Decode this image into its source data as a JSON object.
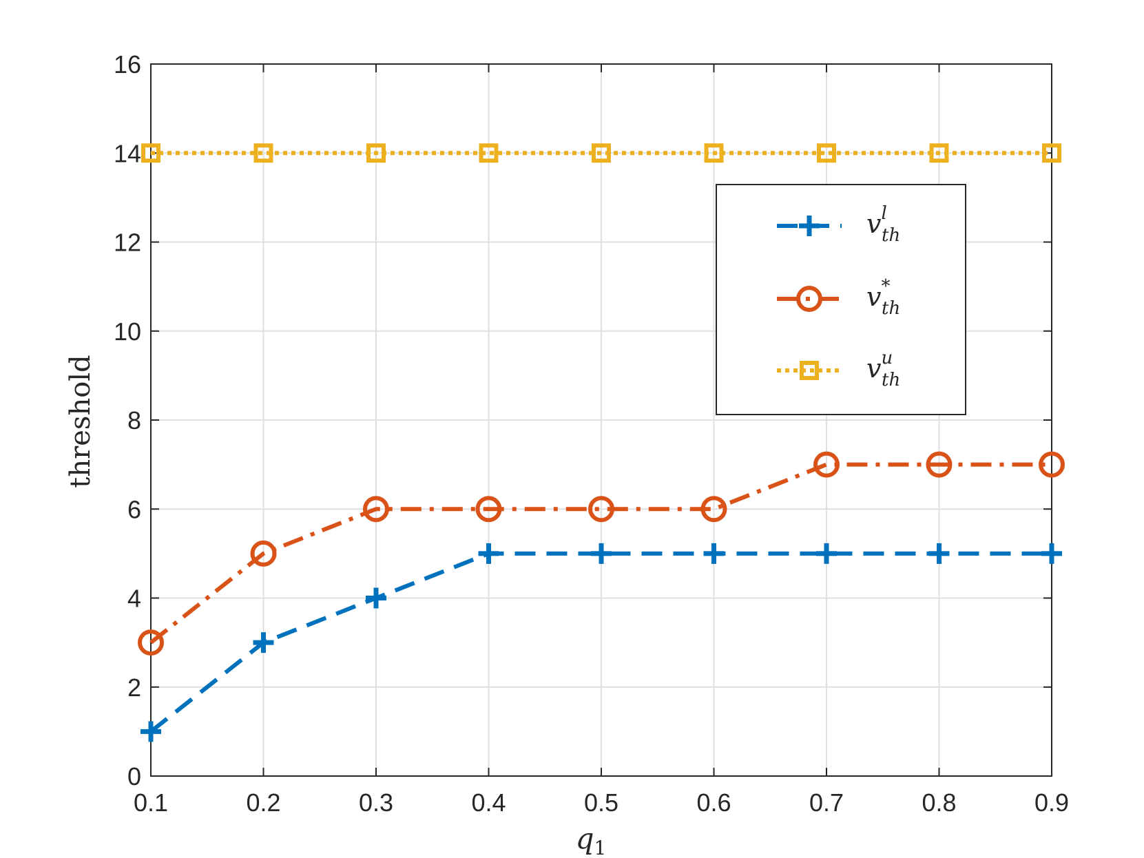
{
  "chart_data": {
    "type": "line",
    "xlabel": "q",
    "xlabel_sub": "1",
    "ylabel": "threshold",
    "x": [
      0.1,
      0.2,
      0.3,
      0.4,
      0.5,
      0.6,
      0.7,
      0.8,
      0.9
    ],
    "xlim": [
      0.1,
      0.9
    ],
    "ylim": [
      0,
      16
    ],
    "x_ticks": [
      "0.1",
      "0.2",
      "0.3",
      "0.4",
      "0.5",
      "0.6",
      "0.7",
      "0.8",
      "0.9"
    ],
    "y_ticks": [
      "0",
      "2",
      "4",
      "6",
      "8",
      "10",
      "12",
      "14",
      "16"
    ],
    "grid": true,
    "legend_position": "top-right",
    "series": [
      {
        "name": "v",
        "name_sub": "th",
        "name_sup": "l",
        "values": [
          1,
          3,
          4,
          5,
          5,
          5,
          5,
          5,
          5
        ],
        "color": "#0072BD",
        "line_style": "dashed",
        "marker": "plus"
      },
      {
        "name": "v",
        "name_sub": "th",
        "name_sup": "*",
        "values": [
          3,
          5,
          6,
          6,
          6,
          6,
          7,
          7,
          7
        ],
        "color": "#D95319",
        "line_style": "dash-dot",
        "marker": "circle"
      },
      {
        "name": "v",
        "name_sub": "th",
        "name_sup": "u",
        "values": [
          14,
          14,
          14,
          14,
          14,
          14,
          14,
          14,
          14
        ],
        "color": "#EDB120",
        "line_style": "dotted",
        "marker": "square"
      }
    ]
  }
}
